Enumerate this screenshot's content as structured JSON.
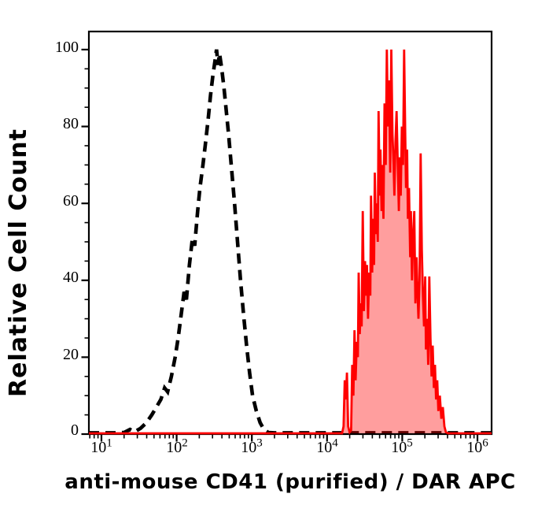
{
  "page": {
    "background": "#ffffff"
  },
  "chart_data": {
    "type": "area",
    "subtype": "flow-cytometry-histogram-overlay",
    "title": "",
    "xlabel": "anti-mouse CD41 (purified) / DAR APC",
    "ylabel": "Relative Cell Count",
    "grid": false,
    "legend": null,
    "x_axis": {
      "scale": "log10",
      "min_log": 0.833,
      "max_log": 6.188,
      "major_ticks_log": [
        1,
        2,
        3,
        4,
        5,
        6
      ],
      "tick_labels": [
        {
          "base": "10",
          "exp": "1"
        },
        {
          "base": "10",
          "exp": "2"
        },
        {
          "base": "10",
          "exp": "3"
        },
        {
          "base": "10",
          "exp": "4"
        },
        {
          "base": "10",
          "exp": "5"
        },
        {
          "base": "10",
          "exp": "6"
        }
      ],
      "minor_ticks_mantissas": [
        2,
        3,
        4,
        5,
        6,
        7,
        8,
        9
      ]
    },
    "y_axis": {
      "min": 0,
      "max": 104.7,
      "major_ticks": [
        0,
        20,
        40,
        60,
        80,
        100
      ],
      "tick_labels": [
        "0",
        "20",
        "40",
        "60",
        "80",
        "100"
      ],
      "minor_step": 5
    },
    "series": [
      {
        "name": "black-dashed-histogram",
        "style": "dashed-outline",
        "color": "#000000",
        "line_width": 4.6,
        "dash": [
          13,
          8
        ],
        "points": [
          [
            0.833,
            0
          ],
          [
            1.18,
            0
          ],
          [
            1.3,
            0.4
          ],
          [
            1.38,
            1.2
          ],
          [
            1.44,
            0.6
          ],
          [
            1.52,
            1.5
          ],
          [
            1.6,
            3
          ],
          [
            1.67,
            5
          ],
          [
            1.73,
            7
          ],
          [
            1.79,
            9
          ],
          [
            1.84,
            12
          ],
          [
            1.88,
            11
          ],
          [
            1.93,
            15
          ],
          [
            1.98,
            20
          ],
          [
            2.02,
            25
          ],
          [
            2.06,
            31
          ],
          [
            2.1,
            37
          ],
          [
            2.13,
            35
          ],
          [
            2.17,
            44
          ],
          [
            2.21,
            51
          ],
          [
            2.24,
            49
          ],
          [
            2.28,
            58
          ],
          [
            2.31,
            64
          ],
          [
            2.35,
            70
          ],
          [
            2.38,
            75
          ],
          [
            2.42,
            82
          ],
          [
            2.45,
            88
          ],
          [
            2.48,
            93
          ],
          [
            2.51,
            97
          ],
          [
            2.53,
            100
          ],
          [
            2.55,
            96
          ],
          [
            2.57,
            99
          ],
          [
            2.6,
            95
          ],
          [
            2.63,
            90
          ],
          [
            2.66,
            84
          ],
          [
            2.69,
            78
          ],
          [
            2.73,
            69
          ],
          [
            2.77,
            60
          ],
          [
            2.81,
            50
          ],
          [
            2.85,
            40
          ],
          [
            2.89,
            31
          ],
          [
            2.93,
            23
          ],
          [
            2.97,
            16
          ],
          [
            3.01,
            10
          ],
          [
            3.06,
            6
          ],
          [
            3.11,
            3
          ],
          [
            3.16,
            1.2
          ],
          [
            3.22,
            0.4
          ],
          [
            3.3,
            0
          ],
          [
            6.188,
            0
          ]
        ]
      },
      {
        "name": "red-filled-histogram",
        "style": "solid-filled",
        "color": "#ff0000",
        "fill_color": "#ff0000",
        "fill_opacity": 0.38,
        "line_width": 2.8,
        "points": [
          [
            4.2,
            0
          ],
          [
            4.22,
            2
          ],
          [
            4.235,
            14
          ],
          [
            4.25,
            9
          ],
          [
            4.265,
            16
          ],
          [
            4.28,
            2
          ],
          [
            4.3,
            0.5
          ],
          [
            4.32,
            1
          ],
          [
            4.335,
            18
          ],
          [
            4.35,
            10
          ],
          [
            4.365,
            27
          ],
          [
            4.38,
            14
          ],
          [
            4.395,
            24
          ],
          [
            4.41,
            20
          ],
          [
            4.42,
            42
          ],
          [
            4.435,
            26
          ],
          [
            4.45,
            34
          ],
          [
            4.46,
            28
          ],
          [
            4.475,
            58
          ],
          [
            4.49,
            32
          ],
          [
            4.505,
            45
          ],
          [
            4.52,
            36
          ],
          [
            4.53,
            44
          ],
          [
            4.545,
            30
          ],
          [
            4.56,
            42
          ],
          [
            4.575,
            36
          ],
          [
            4.585,
            62
          ],
          [
            4.6,
            42
          ],
          [
            4.61,
            56
          ],
          [
            4.625,
            44
          ],
          [
            4.635,
            68
          ],
          [
            4.65,
            52
          ],
          [
            4.66,
            60
          ],
          [
            4.675,
            50
          ],
          [
            4.685,
            84
          ],
          [
            4.7,
            62
          ],
          [
            4.71,
            74
          ],
          [
            4.725,
            58
          ],
          [
            4.735,
            70
          ],
          [
            4.75,
            56
          ],
          [
            4.765,
            86
          ],
          [
            4.78,
            70
          ],
          [
            4.795,
            100
          ],
          [
            4.81,
            80
          ],
          [
            4.825,
            92
          ],
          [
            4.84,
            68
          ],
          [
            4.855,
            100
          ],
          [
            4.87,
            78
          ],
          [
            4.885,
            70
          ],
          [
            4.895,
            62
          ],
          [
            4.91,
            76
          ],
          [
            4.925,
            84
          ],
          [
            4.94,
            70
          ],
          [
            4.955,
            58
          ],
          [
            4.965,
            72
          ],
          [
            4.98,
            62
          ],
          [
            4.995,
            80
          ],
          [
            5.01,
            70
          ],
          [
            5.025,
            100
          ],
          [
            5.04,
            78
          ],
          [
            5.05,
            64
          ],
          [
            5.065,
            74
          ],
          [
            5.075,
            56
          ],
          [
            5.09,
            64
          ],
          [
            5.105,
            46
          ],
          [
            5.115,
            58
          ],
          [
            5.13,
            40
          ],
          [
            5.145,
            52
          ],
          [
            5.16,
            58
          ],
          [
            5.175,
            34
          ],
          [
            5.19,
            46
          ],
          [
            5.205,
            36
          ],
          [
            5.215,
            30
          ],
          [
            5.23,
            40
          ],
          [
            5.245,
            73
          ],
          [
            5.26,
            48
          ],
          [
            5.275,
            36
          ],
          [
            5.29,
            28
          ],
          [
            5.305,
            41
          ],
          [
            5.315,
            22
          ],
          [
            5.33,
            30
          ],
          [
            5.345,
            18
          ],
          [
            5.36,
            41
          ],
          [
            5.375,
            25
          ],
          [
            5.39,
            15
          ],
          [
            5.405,
            23
          ],
          [
            5.42,
            12
          ],
          [
            5.435,
            18
          ],
          [
            5.45,
            9
          ],
          [
            5.465,
            14
          ],
          [
            5.48,
            6
          ],
          [
            5.5,
            10
          ],
          [
            5.52,
            4
          ],
          [
            5.54,
            7
          ],
          [
            5.56,
            2
          ],
          [
            5.58,
            0.5
          ],
          [
            5.61,
            0
          ]
        ]
      }
    ],
    "colors": {
      "axis": "#000000",
      "frame": "#000000"
    }
  }
}
